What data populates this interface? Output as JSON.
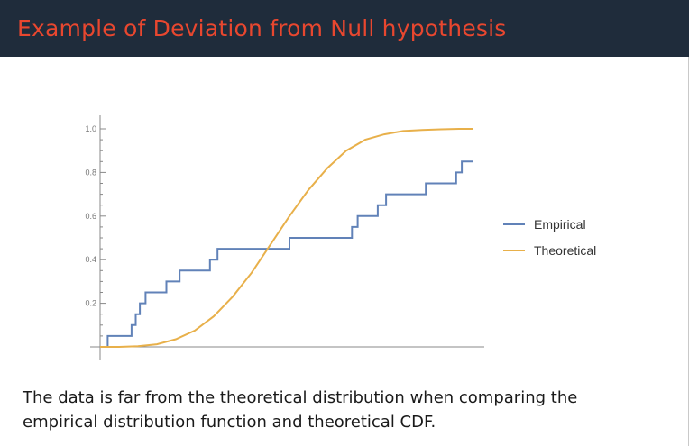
{
  "slide": {
    "title": "Example of Deviation from Null hypothesis",
    "caption_line1": "The data is far from the theoretical distribution when comparing the",
    "caption_line2": "empirical distribution function and theoretical CDF."
  },
  "colors": {
    "title_bar": "#1f2c3b",
    "title_text": "#e8472f",
    "empirical": "#6182b8",
    "theoretical": "#e8b04a"
  },
  "chart_data": {
    "type": "line",
    "xlim": [
      0,
      1
    ],
    "ylim": [
      -0.03,
      1.03
    ],
    "yticks": [
      "0.2",
      "0.4",
      "0.6",
      "0.8",
      "1.0"
    ],
    "grid": false,
    "legend_position": "right",
    "series": [
      {
        "name": "Empirical",
        "step": true,
        "x": [
          0.02,
          0.02,
          0.083,
          0.083,
          0.094,
          0.094,
          0.105,
          0.105,
          0.12,
          0.12,
          0.175,
          0.175,
          0.21,
          0.21,
          0.29,
          0.29,
          0.31,
          0.31,
          0.5,
          0.5,
          0.665,
          0.665,
          0.68,
          0.68,
          0.733,
          0.733,
          0.755,
          0.755,
          0.86,
          0.86,
          0.94,
          0.94,
          0.955,
          0.955,
          0.97,
          0.97,
          0.985
        ],
        "y": [
          0.0,
          0.05,
          0.05,
          0.1,
          0.1,
          0.15,
          0.15,
          0.2,
          0.2,
          0.25,
          0.25,
          0.3,
          0.3,
          0.35,
          0.35,
          0.4,
          0.4,
          0.45,
          0.45,
          0.5,
          0.5,
          0.55,
          0.55,
          0.6,
          0.6,
          0.65,
          0.65,
          0.7,
          0.7,
          0.75,
          0.75,
          0.8,
          0.8,
          0.85,
          0.85,
          0.85,
          0.85
        ]
      },
      {
        "name": "Theoretical",
        "x": [
          0.0,
          0.05,
          0.1,
          0.15,
          0.2,
          0.25,
          0.3,
          0.35,
          0.4,
          0.45,
          0.5,
          0.55,
          0.6,
          0.65,
          0.7,
          0.75,
          0.8,
          0.85,
          0.9,
          0.95,
          0.985
        ],
        "y": [
          0.0,
          0.0,
          0.003,
          0.012,
          0.035,
          0.075,
          0.14,
          0.23,
          0.34,
          0.47,
          0.6,
          0.72,
          0.82,
          0.9,
          0.95,
          0.975,
          0.99,
          0.995,
          0.998,
          1.0,
          1.0
        ]
      }
    ]
  }
}
